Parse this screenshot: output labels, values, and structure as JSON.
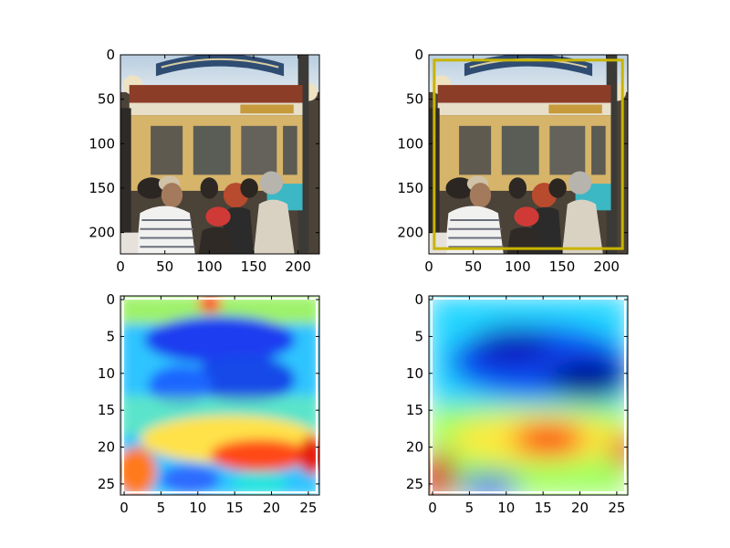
{
  "figure": {
    "background": "#ffffff",
    "axis_color": "#000000",
    "box_color": "#c8b400"
  },
  "chart_data": [
    {
      "id": "photo-original",
      "type": "image",
      "content": "photo of a crowd of people in front of a cable car",
      "xlim": [
        0,
        224
      ],
      "ylim": [
        224,
        0
      ],
      "xticks": [
        0,
        50,
        100,
        150,
        200
      ],
      "yticks": [
        0,
        50,
        100,
        150,
        200
      ]
    },
    {
      "id": "photo-with-box",
      "type": "image",
      "content": "same photo with a yellow rectangle overlay",
      "xlim": [
        0,
        224
      ],
      "ylim": [
        224,
        0
      ],
      "xticks": [
        0,
        50,
        100,
        150,
        200
      ],
      "yticks": [
        0,
        50,
        100,
        150,
        200
      ],
      "overlay_box": {
        "x0": 6,
        "y0": 6,
        "x1": 218,
        "y1": 218,
        "color": "#c8b400"
      }
    },
    {
      "id": "heatmap-raw",
      "type": "heatmap",
      "colormap": "jet",
      "xlim": [
        -0.5,
        26.5
      ],
      "ylim": [
        26.5,
        -0.5
      ],
      "xticks": [
        0,
        5,
        10,
        15,
        20,
        25
      ],
      "yticks": [
        0,
        5,
        10,
        15,
        20,
        25
      ]
    },
    {
      "id": "heatmap-smooth",
      "type": "heatmap",
      "colormap": "jet",
      "xlim": [
        -0.5,
        26.5
      ],
      "ylim": [
        26.5,
        -0.5
      ],
      "xticks": [
        0,
        5,
        10,
        15,
        20,
        25
      ],
      "yticks": [
        0,
        5,
        10,
        15,
        20,
        25
      ]
    }
  ]
}
